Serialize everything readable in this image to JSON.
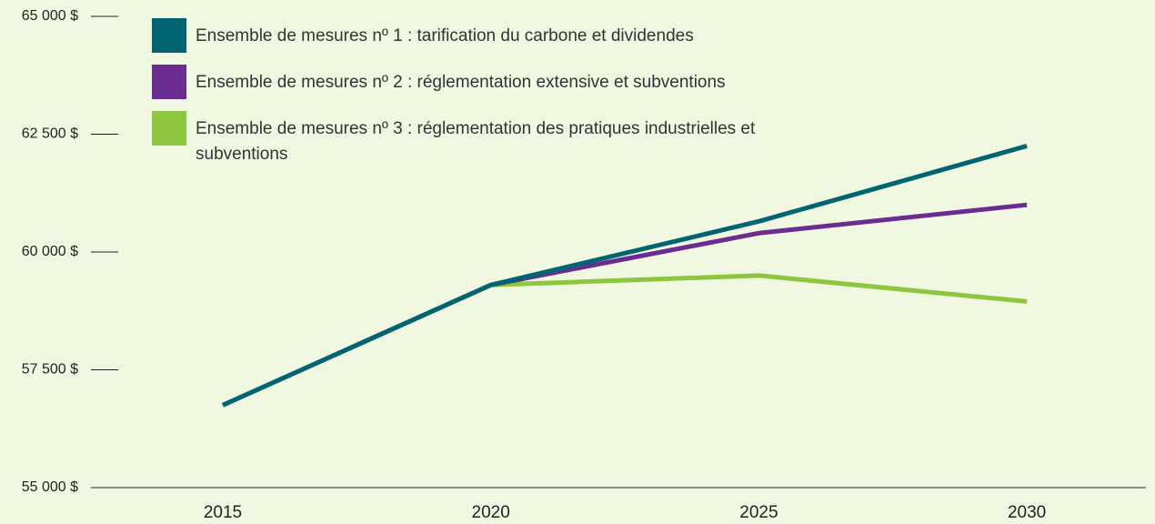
{
  "chart_data": {
    "type": "line",
    "categories": [
      "2015",
      "2020",
      "2025",
      "2030"
    ],
    "series": [
      {
        "name": "Ensemble de mesures nº 1 : tarification du carbone et dividendes",
        "color": "#006570",
        "values": [
          56750,
          59300,
          60650,
          62250
        ]
      },
      {
        "name": "Ensemble de mesures nº 2 : réglementation extensive et subventions",
        "color": "#6b2c91",
        "values": [
          56750,
          59300,
          60400,
          61000
        ]
      },
      {
        "name": "Ensemble de mesures nº 3 : réglementation des pratiques industrielles et subventions",
        "color": "#8dc63f",
        "values": [
          56750,
          59300,
          59500,
          58950
        ]
      }
    ],
    "ylim": [
      55000,
      65000
    ],
    "yticks": [
      {
        "value": 55000,
        "label": "55 000 $"
      },
      {
        "value": 57500,
        "label": "57 500 $"
      },
      {
        "value": 60000,
        "label": "60 000 $"
      },
      {
        "value": 62500,
        "label": "62 500 $"
      },
      {
        "value": 65000,
        "label": "65 000 $"
      }
    ],
    "legend": "top-left"
  }
}
